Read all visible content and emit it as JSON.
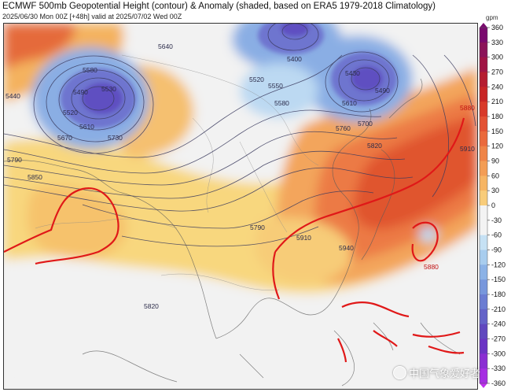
{
  "header": {
    "title": "ECMWF 500mb Geopotential Height (contour) & Anomaly (shaded, based on ERA5 1979-2018 Climatology)",
    "subtitle": "2025/06/30 Mon 00Z [+48h] valid at 2025/07/02 Wed 00Z"
  },
  "colorbar": {
    "unit": "gpm",
    "ticks": [
      360,
      330,
      300,
      270,
      240,
      210,
      180,
      150,
      120,
      90,
      60,
      30,
      0,
      -30,
      -60,
      -90,
      -120,
      -150,
      -180,
      -210,
      -240,
      -270,
      -300,
      -330,
      -360
    ],
    "colors": [
      "#7a0a6e",
      "#8b1459",
      "#a01545",
      "#b51d30",
      "#c82626",
      "#d83a2a",
      "#e35234",
      "#ea6a3c",
      "#ef8447",
      "#f39d55",
      "#f6b564",
      "#f8cc7a",
      "#f3f3f3",
      "#f3f3f3",
      "#c6e1f4",
      "#a8cdee",
      "#8bb2e6",
      "#7897dc",
      "#6c7dd2",
      "#6463c8",
      "#6048be",
      "#6b34c4",
      "#8a2ed2",
      "#a62ee2",
      "#c030ee"
    ]
  },
  "contour_labels": [
    "5440",
    "5580",
    "5530",
    "5490",
    "5520",
    "5610",
    "5670",
    "5730",
    "5790",
    "5850",
    "5640",
    "5400",
    "5520",
    "5550",
    "5580",
    "5490",
    "5430",
    "5610",
    "5700",
    "5760",
    "5820",
    "5880",
    "5910",
    "5790",
    "5910",
    "5940",
    "5820",
    "5880"
  ],
  "watermark": {
    "text": "中国气象爱好者"
  }
}
